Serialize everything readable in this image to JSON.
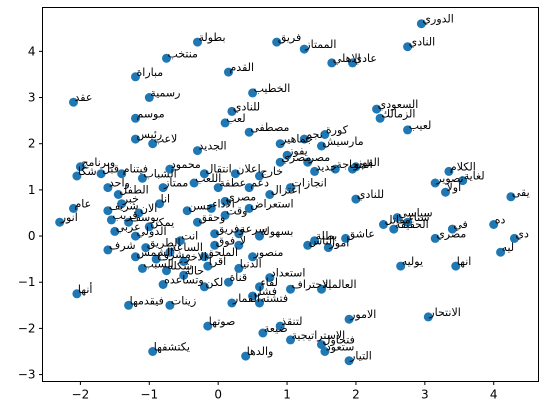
{
  "chart_data": {
    "type": "scatter",
    "title": "",
    "xlabel": "",
    "ylabel": "",
    "xlim": [
      -2.55,
      4.65
    ],
    "ylim": [
      -3.15,
      4.95
    ],
    "x_ticks": [
      -2,
      -1,
      0,
      1,
      2,
      3,
      4
    ],
    "y_ticks": [
      -3,
      -2,
      -1,
      0,
      1,
      2,
      3,
      4
    ],
    "grid": false,
    "legend": "none",
    "marker_color": "#1f77b4",
    "points": [
      {
        "x": 2.95,
        "y": 4.6,
        "label": "الدوري"
      },
      {
        "x": 2.75,
        "y": 4.1,
        "label": "النادي"
      },
      {
        "x": -0.3,
        "y": 4.2,
        "label": "بطولة"
      },
      {
        "x": 0.85,
        "y": 4.2,
        "label": "فريق"
      },
      {
        "x": 1.25,
        "y": 4.05,
        "label": "الممتاز"
      },
      {
        "x": 1.65,
        "y": 3.75,
        "label": "الاهلي"
      },
      {
        "x": 1.95,
        "y": 3.75,
        "label": "عادي"
      },
      {
        "x": -0.75,
        "y": 3.85,
        "label": "منتخب"
      },
      {
        "x": 0.15,
        "y": 3.55,
        "label": "القدم"
      },
      {
        "x": -1.2,
        "y": 3.45,
        "label": "مباراة"
      },
      {
        "x": 0.5,
        "y": 3.1,
        "label": "الخطيب"
      },
      {
        "x": -1.0,
        "y": 3.0,
        "label": "رسمية"
      },
      {
        "x": -2.1,
        "y": 2.9,
        "label": "عقد"
      },
      {
        "x": 2.3,
        "y": 2.75,
        "label": "السعودي"
      },
      {
        "x": 2.35,
        "y": 2.55,
        "label": "الزمالك"
      },
      {
        "x": -1.2,
        "y": 2.55,
        "label": "موسم"
      },
      {
        "x": 0.2,
        "y": 2.7,
        "label": "للنادي"
      },
      {
        "x": 0.1,
        "y": 2.45,
        "label": "لعب"
      },
      {
        "x": 2.75,
        "y": 2.3,
        "label": "لعيب"
      },
      {
        "x": 0.45,
        "y": 2.25,
        "label": "مصطفى"
      },
      {
        "x": 1.55,
        "y": 2.2,
        "label": "كورة"
      },
      {
        "x": 1.25,
        "y": 2.1,
        "label": "نجم"
      },
      {
        "x": -1.2,
        "y": 2.1,
        "label": "رئيس"
      },
      {
        "x": -0.95,
        "y": 2.0,
        "label": "لاعب"
      },
      {
        "x": -0.3,
        "y": 1.85,
        "label": "الجديد"
      },
      {
        "x": 0.9,
        "y": 2.0,
        "label": "جماهير"
      },
      {
        "x": 1.5,
        "y": 1.95,
        "label": "مارسيش"
      },
      {
        "x": 1.0,
        "y": 1.75,
        "label": "يفوز"
      },
      {
        "x": 1.3,
        "y": 1.6,
        "label": "مصر"
      },
      {
        "x": 0.9,
        "y": 1.6,
        "label": "مصري"
      },
      {
        "x": 2.0,
        "y": 1.5,
        "label": "الفوز"
      },
      {
        "x": 1.7,
        "y": 1.45,
        "label": "حاجة"
      },
      {
        "x": 1.4,
        "y": 1.4,
        "label": "جديد"
      },
      {
        "x": 1.95,
        "y": 1.45,
        "label": "الجو"
      },
      {
        "x": 3.35,
        "y": 1.4,
        "label": "الكلام"
      },
      {
        "x": 3.55,
        "y": 1.2,
        "label": "لغاية"
      },
      {
        "x": 3.15,
        "y": 1.15,
        "label": "تصوير"
      },
      {
        "x": 3.3,
        "y": 0.95,
        "label": "اولا"
      },
      {
        "x": 4.25,
        "y": 0.85,
        "label": "يقى"
      },
      {
        "x": -2.0,
        "y": 1.5,
        "label": "وبرنامج"
      },
      {
        "x": -2.05,
        "y": 1.3,
        "label": "شكا"
      },
      {
        "x": -1.7,
        "y": 1.35,
        "label": "قبل"
      },
      {
        "x": -1.4,
        "y": 1.35,
        "label": "فيتنام"
      },
      {
        "x": -0.7,
        "y": 1.45,
        "label": "محمود"
      },
      {
        "x": -1.1,
        "y": 1.25,
        "label": "الشباب"
      },
      {
        "x": -0.2,
        "y": 1.35,
        "label": "انتقال"
      },
      {
        "x": 0.25,
        "y": 1.35,
        "label": "اعلان"
      },
      {
        "x": 0.6,
        "y": 1.3,
        "label": "خارج"
      },
      {
        "x": -1.6,
        "y": 1.05,
        "label": "واحد"
      },
      {
        "x": -1.45,
        "y": 0.9,
        "label": "الطفل"
      },
      {
        "x": -0.8,
        "y": 1.05,
        "label": "ممتاز"
      },
      {
        "x": -0.35,
        "y": 1.15,
        "label": "اللعب"
      },
      {
        "x": 0.0,
        "y": 1.05,
        "label": "عطفة"
      },
      {
        "x": 0.45,
        "y": 1.05,
        "label": "دعم"
      },
      {
        "x": 1.05,
        "y": 1.05,
        "label": "انجازات"
      },
      {
        "x": 0.75,
        "y": 0.9,
        "label": "اعتزال"
      },
      {
        "x": 2.0,
        "y": 0.8,
        "label": "للنادي"
      },
      {
        "x": -2.1,
        "y": 0.6,
        "label": "عام"
      },
      {
        "x": -1.4,
        "y": 0.7,
        "label": "خبر"
      },
      {
        "x": -0.85,
        "y": 0.7,
        "label": "انا"
      },
      {
        "x": 0.1,
        "y": 0.75,
        "label": "مصري"
      },
      {
        "x": -1.6,
        "y": 0.55,
        "label": "شريف"
      },
      {
        "x": -1.15,
        "y": 0.5,
        "label": "الان"
      },
      {
        "x": -0.45,
        "y": 0.55,
        "label": "حسن"
      },
      {
        "x": -0.1,
        "y": 0.6,
        "label": "الاداء"
      },
      {
        "x": 0.45,
        "y": 0.6,
        "label": "استعراض"
      },
      {
        "x": 0.1,
        "y": 0.45,
        "label": "وقت"
      },
      {
        "x": -1.55,
        "y": 0.35,
        "label": "قريب"
      },
      {
        "x": -1.3,
        "y": 0.3,
        "label": "يوسف"
      },
      {
        "x": -2.3,
        "y": 0.3,
        "label": "انور"
      },
      {
        "x": -1.0,
        "y": 0.2,
        "label": "يمكن"
      },
      {
        "x": -0.3,
        "y": 0.3,
        "label": "وحقق"
      },
      {
        "x": 2.6,
        "y": 0.4,
        "label": "سياسي"
      },
      {
        "x": 2.75,
        "y": 0.3,
        "label": "شتاء"
      },
      {
        "x": 2.4,
        "y": 0.25,
        "label": "مقاتل"
      },
      {
        "x": 2.55,
        "y": 0.15,
        "label": "الحقيقة"
      },
      {
        "x": 3.4,
        "y": 0.15,
        "label": "في"
      },
      {
        "x": 4.0,
        "y": 0.25,
        "label": "ده"
      },
      {
        "x": 3.15,
        "y": -0.05,
        "label": "مصري"
      },
      {
        "x": 4.3,
        "y": -0.05,
        "label": "دي"
      },
      {
        "x": 4.1,
        "y": -0.35,
        "label": "ليه"
      },
      {
        "x": -1.5,
        "y": 0.1,
        "label": "عربي"
      },
      {
        "x": -1.2,
        "y": 0.0,
        "label": "الدولي"
      },
      {
        "x": -0.55,
        "y": -0.1,
        "label": "انت"
      },
      {
        "x": -0.05,
        "y": 0.05,
        "label": "وفريق"
      },
      {
        "x": 0.3,
        "y": 0.05,
        "label": "سرعة"
      },
      {
        "x": 0.6,
        "y": 0.0,
        "label": "بسهولة"
      },
      {
        "x": 1.4,
        "y": -0.1,
        "label": "بطلة"
      },
      {
        "x": 1.85,
        "y": -0.05,
        "label": "عاشق"
      },
      {
        "x": -1.6,
        "y": -0.3,
        "label": "شرف"
      },
      {
        "x": -1.05,
        "y": -0.25,
        "label": "الطريق"
      },
      {
        "x": -0.7,
        "y": -0.35,
        "label": "الساعه"
      },
      {
        "x": -0.05,
        "y": -0.2,
        "label": "فوق"
      },
      {
        "x": 0.3,
        "y": -0.2,
        "label": "لا"
      },
      {
        "x": 1.3,
        "y": -0.2,
        "label": "الناس"
      },
      {
        "x": 1.6,
        "y": -0.25,
        "label": "امور"
      },
      {
        "x": -1.2,
        "y": -0.45,
        "label": "الشمس"
      },
      {
        "x": -0.9,
        "y": -0.5,
        "label": "مشروع"
      },
      {
        "x": -0.5,
        "y": -0.55,
        "label": "الاخر"
      },
      {
        "x": -0.2,
        "y": -0.45,
        "label": "الملحق"
      },
      {
        "x": 0.5,
        "y": -0.45,
        "label": "منصور"
      },
      {
        "x": -1.1,
        "y": -0.7,
        "label": "السبب"
      },
      {
        "x": -0.75,
        "y": -0.75,
        "label": "شكله"
      },
      {
        "x": -0.15,
        "y": -0.65,
        "label": "اقرأ"
      },
      {
        "x": 0.3,
        "y": -0.7,
        "label": "الدنيا"
      },
      {
        "x": 0.75,
        "y": -0.9,
        "label": "استعداد"
      },
      {
        "x": -0.5,
        "y": -0.85,
        "label": "حالة"
      },
      {
        "x": 2.65,
        "y": -0.65,
        "label": "يوليه"
      },
      {
        "x": 3.45,
        "y": -0.65,
        "label": "انها"
      },
      {
        "x": -2.05,
        "y": -1.25,
        "label": "أنها"
      },
      {
        "x": -0.8,
        "y": -1.05,
        "label": "وتساعده"
      },
      {
        "x": -0.2,
        "y": -1.1,
        "label": "لكن"
      },
      {
        "x": 0.15,
        "y": -1.0,
        "label": "قناة"
      },
      {
        "x": 0.6,
        "y": -1.1,
        "label": "لقاء"
      },
      {
        "x": 1.05,
        "y": -1.15,
        "label": "الاحتراف"
      },
      {
        "x": 1.5,
        "y": -1.15,
        "label": "العالمية"
      },
      {
        "x": 0.5,
        "y": -1.3,
        "label": "فشل"
      },
      {
        "x": -1.3,
        "y": -1.5,
        "label": "فيقدمها"
      },
      {
        "x": -0.7,
        "y": -1.5,
        "label": "زينات"
      },
      {
        "x": 0.2,
        "y": -1.45,
        "label": "القمار"
      },
      {
        "x": 0.6,
        "y": -1.45,
        "label": "فتشته"
      },
      {
        "x": 1.9,
        "y": -1.8,
        "label": "الامور"
      },
      {
        "x": 3.05,
        "y": -1.75,
        "label": "الانتحار"
      },
      {
        "x": -0.15,
        "y": -1.95,
        "label": "صوتها"
      },
      {
        "x": 0.9,
        "y": -1.95,
        "label": "لتنقذ"
      },
      {
        "x": 0.65,
        "y": -2.1,
        "label": "ضيعة"
      },
      {
        "x": 1.05,
        "y": -2.25,
        "label": "الاستراتيجية"
      },
      {
        "x": 1.5,
        "y": -2.35,
        "label": "فتحاول"
      },
      {
        "x": 1.55,
        "y": -2.5,
        "label": "ستعود"
      },
      {
        "x": -0.95,
        "y": -2.5,
        "label": "يكتشفها"
      },
      {
        "x": 0.4,
        "y": -2.6,
        "label": "والدها"
      },
      {
        "x": 1.9,
        "y": -2.7,
        "label": "التيار"
      }
    ]
  }
}
